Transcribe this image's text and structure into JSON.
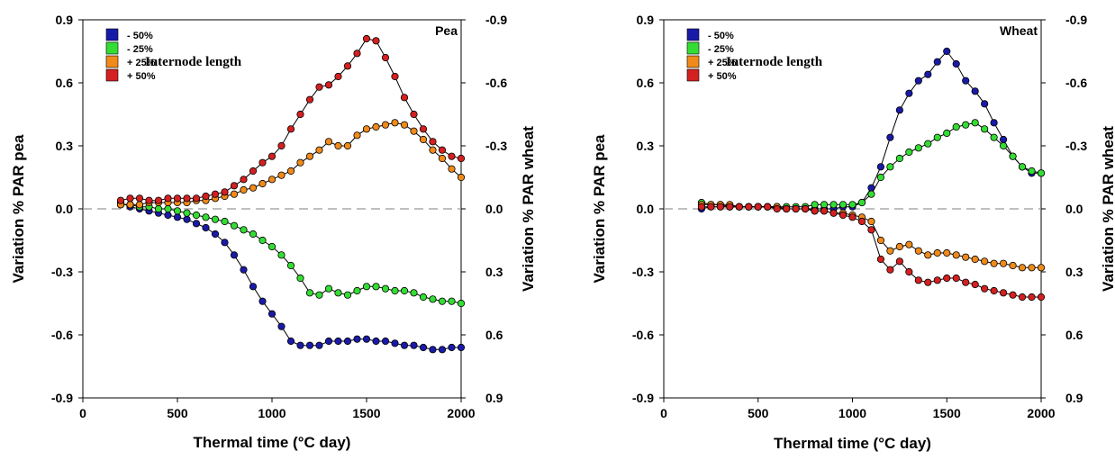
{
  "chart_data": [
    {
      "type": "line",
      "panel_label": "Pea",
      "xlabel": "Thermal time (°C day)",
      "ylabel": "Variation % PAR pea",
      "ylabel_right": "Variation % PAR wheat",
      "xlim": [
        0,
        2000
      ],
      "ylim": [
        -0.9,
        0.9
      ],
      "x_ticks": [
        "0",
        "500",
        "1000",
        "1500",
        "2000"
      ],
      "y_ticks": [
        "-0.9",
        "-0.6",
        "-0.3",
        "0.0",
        "0.3",
        "0.6",
        "0.9"
      ],
      "y_ticks_right": [
        "0.9",
        "0.6",
        "0.3",
        "0.0",
        "-0.3",
        "-0.6",
        "-0.9"
      ],
      "reference_line": 0,
      "legend_title": "Internode length",
      "legend_position": "top-left",
      "series": [
        {
          "name": "- 50%",
          "color": "#1a1aa8",
          "x": [
            200,
            250,
            300,
            350,
            400,
            450,
            500,
            550,
            600,
            650,
            700,
            750,
            800,
            850,
            900,
            950,
            1000,
            1050,
            1100,
            1150,
            1200,
            1250,
            1300,
            1350,
            1400,
            1450,
            1500,
            1550,
            1600,
            1650,
            1700,
            1750,
            1800,
            1850,
            1900,
            1950,
            2000
          ],
          "y": [
            0.03,
            0.01,
            0.0,
            -0.01,
            -0.02,
            -0.03,
            -0.04,
            -0.05,
            -0.07,
            -0.09,
            -0.12,
            -0.16,
            -0.22,
            -0.29,
            -0.37,
            -0.44,
            -0.5,
            -0.56,
            -0.63,
            -0.65,
            -0.65,
            -0.65,
            -0.63,
            -0.63,
            -0.63,
            -0.62,
            -0.62,
            -0.63,
            -0.63,
            -0.64,
            -0.65,
            -0.65,
            -0.66,
            -0.67,
            -0.67,
            -0.66,
            -0.66
          ]
        },
        {
          "name": "- 25%",
          "color": "#33dd33",
          "x": [
            200,
            250,
            300,
            350,
            400,
            450,
            500,
            550,
            600,
            650,
            700,
            750,
            800,
            850,
            900,
            950,
            1000,
            1050,
            1100,
            1150,
            1200,
            1250,
            1300,
            1350,
            1400,
            1450,
            1500,
            1550,
            1600,
            1650,
            1700,
            1750,
            1800,
            1850,
            1900,
            1950,
            2000
          ],
          "y": [
            0.02,
            0.02,
            0.01,
            0.01,
            0.0,
            0.0,
            -0.01,
            -0.02,
            -0.03,
            -0.04,
            -0.05,
            -0.06,
            -0.08,
            -0.1,
            -0.12,
            -0.15,
            -0.18,
            -0.22,
            -0.27,
            -0.33,
            -0.4,
            -0.41,
            -0.38,
            -0.4,
            -0.41,
            -0.39,
            -0.37,
            -0.37,
            -0.38,
            -0.39,
            -0.39,
            -0.4,
            -0.42,
            -0.43,
            -0.44,
            -0.44,
            -0.45
          ]
        },
        {
          "name": "+ 25%",
          "color": "#f08a1a",
          "x": [
            200,
            250,
            300,
            350,
            400,
            450,
            500,
            550,
            600,
            650,
            700,
            750,
            800,
            850,
            900,
            950,
            1000,
            1050,
            1100,
            1150,
            1200,
            1250,
            1300,
            1350,
            1400,
            1450,
            1500,
            1550,
            1600,
            1650,
            1700,
            1750,
            1800,
            1850,
            1900,
            1950,
            2000
          ],
          "y": [
            0.02,
            0.02,
            0.02,
            0.03,
            0.03,
            0.03,
            0.03,
            0.03,
            0.04,
            0.04,
            0.05,
            0.06,
            0.07,
            0.09,
            0.1,
            0.12,
            0.14,
            0.16,
            0.18,
            0.22,
            0.25,
            0.28,
            0.32,
            0.3,
            0.3,
            0.35,
            0.38,
            0.39,
            0.4,
            0.41,
            0.4,
            0.37,
            0.33,
            0.28,
            0.24,
            0.19,
            0.15
          ]
        },
        {
          "name": "+ 50%",
          "color": "#d42020",
          "x": [
            200,
            250,
            300,
            350,
            400,
            450,
            500,
            550,
            600,
            650,
            700,
            750,
            800,
            850,
            900,
            950,
            1000,
            1050,
            1100,
            1150,
            1200,
            1250,
            1300,
            1350,
            1400,
            1450,
            1500,
            1550,
            1600,
            1650,
            1700,
            1750,
            1800,
            1850,
            1900,
            1950,
            2000
          ],
          "y": [
            0.04,
            0.05,
            0.05,
            0.04,
            0.04,
            0.05,
            0.05,
            0.05,
            0.05,
            0.06,
            0.07,
            0.08,
            0.11,
            0.14,
            0.18,
            0.22,
            0.25,
            0.3,
            0.38,
            0.45,
            0.52,
            0.58,
            0.59,
            0.63,
            0.68,
            0.74,
            0.81,
            0.8,
            0.72,
            0.63,
            0.53,
            0.45,
            0.38,
            0.32,
            0.28,
            0.25,
            0.24
          ]
        }
      ]
    },
    {
      "type": "line",
      "panel_label": "Wheat",
      "xlabel": "Thermal time (°C day)",
      "ylabel": "Variation % PAR pea",
      "ylabel_right": "Variation % PAR wheat",
      "xlim": [
        0,
        2000
      ],
      "ylim": [
        -0.9,
        0.9
      ],
      "x_ticks": [
        "0",
        "500",
        "1000",
        "1500",
        "2000"
      ],
      "y_ticks": [
        "-0.9",
        "-0.6",
        "-0.3",
        "0.0",
        "0.3",
        "0.6",
        "0.9"
      ],
      "y_ticks_right": [
        "0.9",
        "0.6",
        "0.3",
        "0.0",
        "-0.3",
        "-0.6",
        "-0.9"
      ],
      "reference_line": 0,
      "legend_title": "Internode length",
      "legend_position": "top-left",
      "series": [
        {
          "name": "- 50%",
          "color": "#1a1aa8",
          "x": [
            200,
            250,
            300,
            350,
            400,
            450,
            500,
            550,
            600,
            650,
            700,
            750,
            800,
            850,
            900,
            950,
            1000,
            1050,
            1100,
            1150,
            1200,
            1250,
            1300,
            1350,
            1400,
            1450,
            1500,
            1550,
            1600,
            1650,
            1700,
            1750,
            1800,
            1850,
            1900,
            1950,
            2000
          ],
          "y": [
            0.0,
            0.01,
            0.01,
            0.01,
            0.01,
            0.01,
            0.01,
            0.01,
            0.01,
            0.0,
            0.0,
            0.0,
            0.0,
            0.0,
            0.0,
            0.01,
            0.01,
            0.03,
            0.1,
            0.2,
            0.34,
            0.47,
            0.55,
            0.61,
            0.64,
            0.7,
            0.75,
            0.69,
            0.61,
            0.56,
            0.5,
            0.41,
            0.33,
            0.25,
            0.2,
            0.17,
            0.17
          ]
        },
        {
          "name": "- 25%",
          "color": "#33dd33",
          "x": [
            200,
            250,
            300,
            350,
            400,
            450,
            500,
            550,
            600,
            650,
            700,
            750,
            800,
            850,
            900,
            950,
            1000,
            1050,
            1100,
            1150,
            1200,
            1250,
            1300,
            1350,
            1400,
            1450,
            1500,
            1550,
            1600,
            1650,
            1700,
            1750,
            1800,
            1850,
            1900,
            1950,
            2000
          ],
          "y": [
            0.03,
            0.02,
            0.02,
            0.01,
            0.01,
            0.01,
            0.01,
            0.01,
            0.01,
            0.01,
            0.01,
            0.01,
            0.02,
            0.02,
            0.02,
            0.02,
            0.02,
            0.03,
            0.07,
            0.15,
            0.2,
            0.24,
            0.27,
            0.29,
            0.31,
            0.34,
            0.36,
            0.39,
            0.4,
            0.41,
            0.38,
            0.34,
            0.3,
            0.25,
            0.2,
            0.18,
            0.17
          ]
        },
        {
          "name": "+ 25%",
          "color": "#f08a1a",
          "x": [
            200,
            250,
            300,
            350,
            400,
            450,
            500,
            550,
            600,
            650,
            700,
            750,
            800,
            850,
            900,
            950,
            1000,
            1050,
            1100,
            1150,
            1200,
            1250,
            1300,
            1350,
            1400,
            1450,
            1500,
            1550,
            1600,
            1650,
            1700,
            1750,
            1800,
            1850,
            1900,
            1950,
            2000
          ],
          "y": [
            0.02,
            0.02,
            0.02,
            0.02,
            0.01,
            0.01,
            0.01,
            0.01,
            0.01,
            0.0,
            0.0,
            0.0,
            -0.01,
            -0.01,
            -0.02,
            -0.02,
            -0.03,
            -0.04,
            -0.06,
            -0.15,
            -0.2,
            -0.18,
            -0.17,
            -0.2,
            -0.22,
            -0.21,
            -0.21,
            -0.22,
            -0.23,
            -0.24,
            -0.25,
            -0.26,
            -0.26,
            -0.27,
            -0.28,
            -0.28,
            -0.28
          ]
        },
        {
          "name": "+ 50%",
          "color": "#d42020",
          "x": [
            200,
            250,
            300,
            350,
            400,
            450,
            500,
            550,
            600,
            650,
            700,
            750,
            800,
            850,
            900,
            950,
            1000,
            1050,
            1100,
            1150,
            1200,
            1250,
            1300,
            1350,
            1400,
            1450,
            1500,
            1550,
            1600,
            1650,
            1700,
            1750,
            1800,
            1850,
            1900,
            1950,
            2000
          ],
          "y": [
            0.01,
            0.01,
            0.01,
            0.01,
            0.01,
            0.01,
            0.01,
            0.01,
            0.0,
            0.0,
            0.0,
            0.0,
            -0.01,
            -0.01,
            -0.02,
            -0.03,
            -0.04,
            -0.06,
            -0.1,
            -0.24,
            -0.29,
            -0.25,
            -0.3,
            -0.34,
            -0.35,
            -0.34,
            -0.33,
            -0.33,
            -0.35,
            -0.36,
            -0.38,
            -0.39,
            -0.4,
            -0.41,
            -0.42,
            -0.42,
            -0.42
          ]
        }
      ]
    }
  ]
}
